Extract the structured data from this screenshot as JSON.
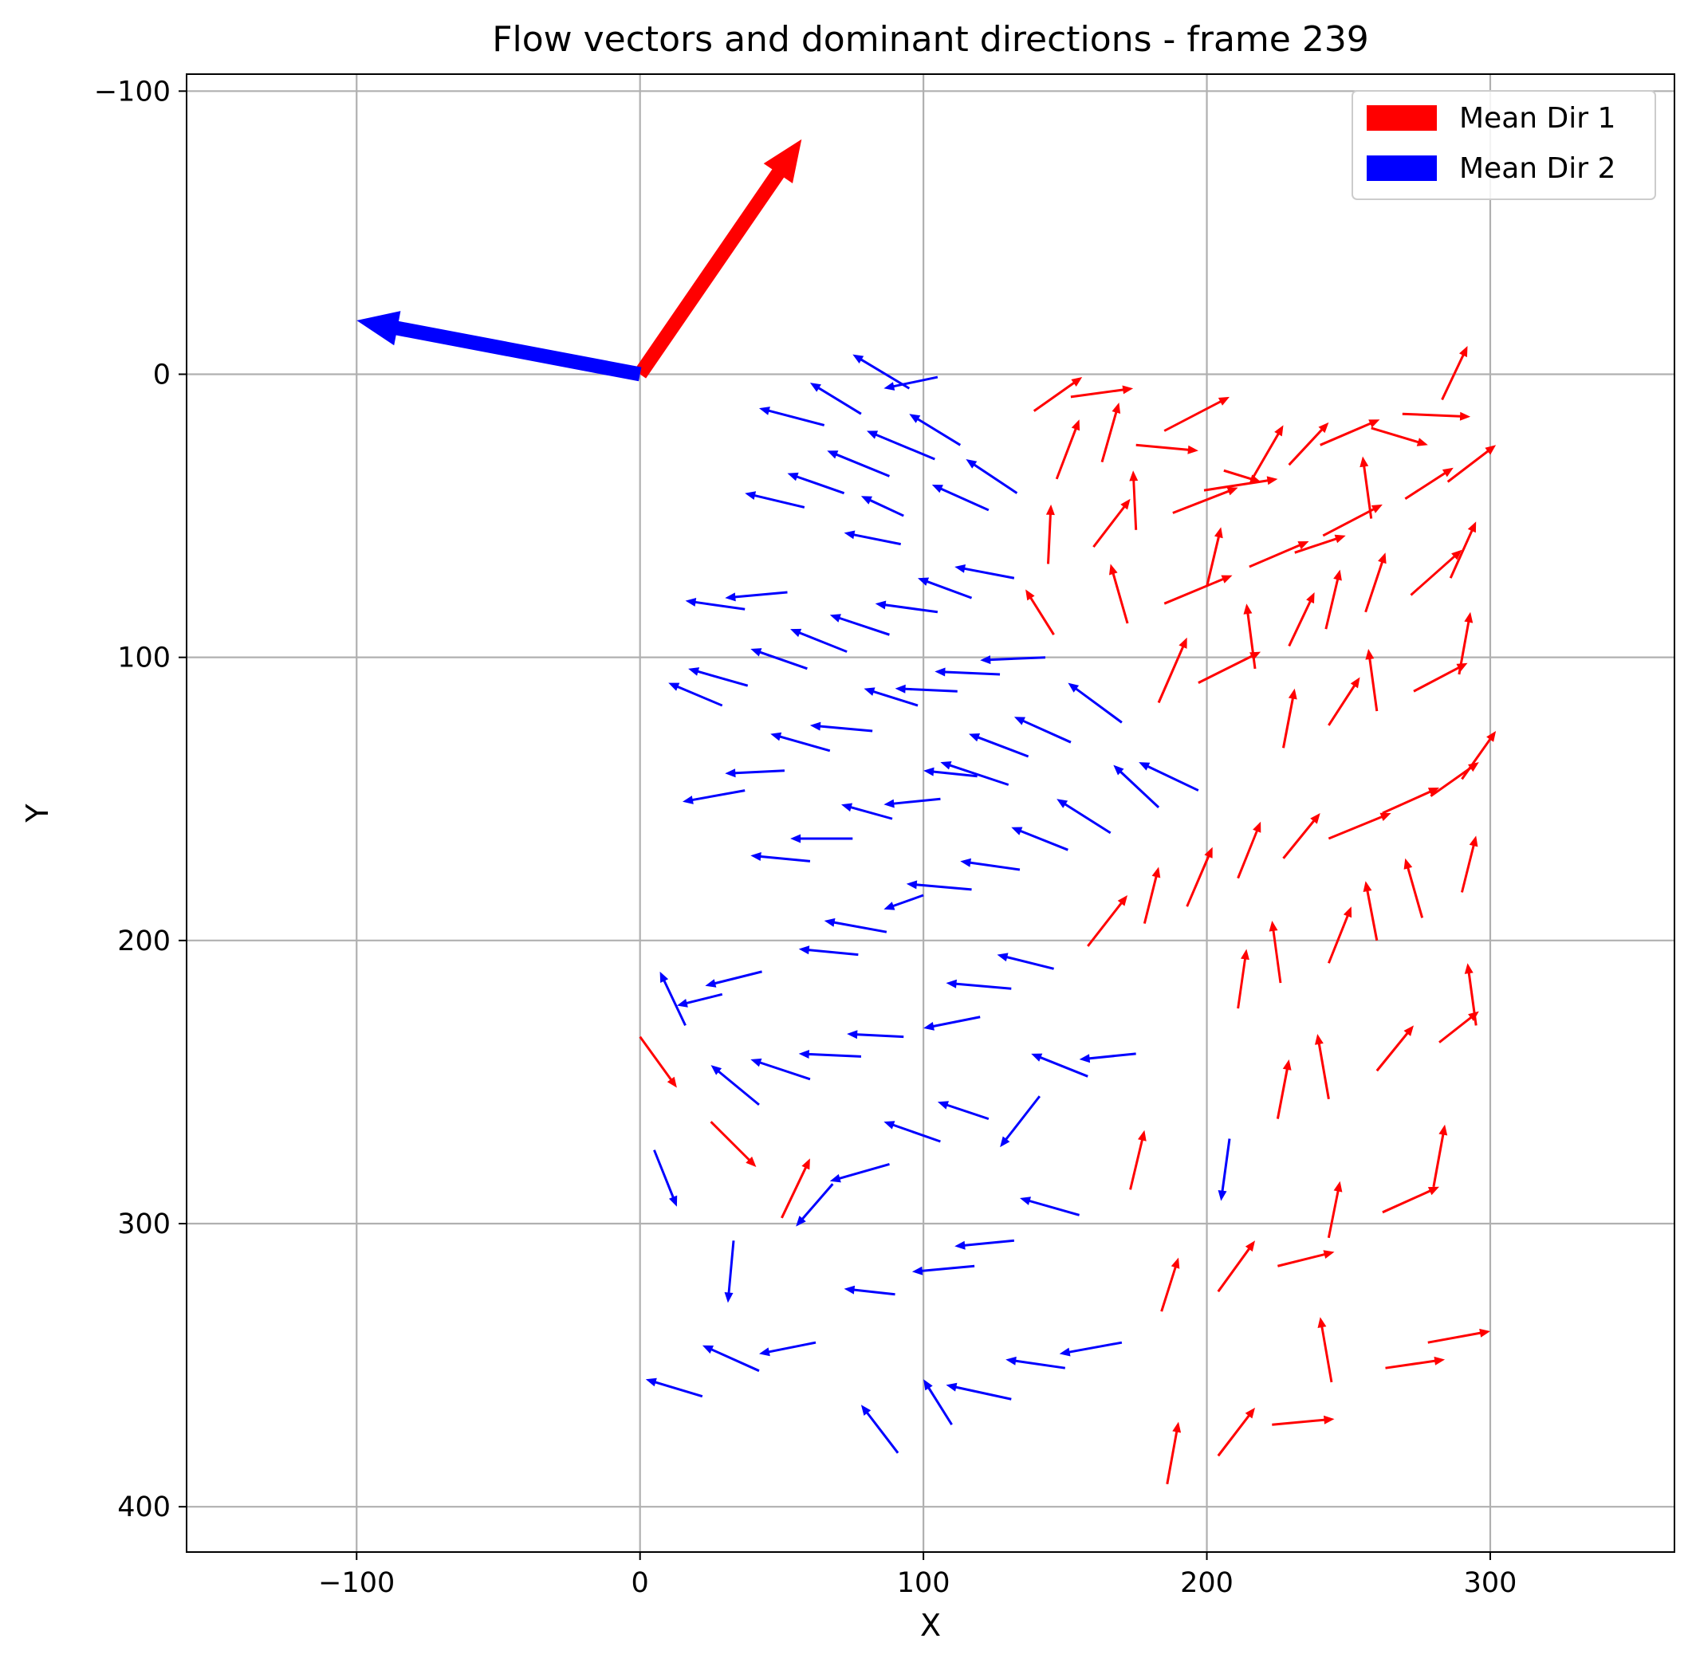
{
  "chart_data": {
    "type": "quiver",
    "title": "Flow vectors and dominant directions - frame 239",
    "xlabel": "X",
    "ylabel": "Y",
    "xlim": [
      -160,
      365
    ],
    "ylim": [
      416,
      -106
    ],
    "y_inverted": true,
    "grid": true,
    "xticks": [
      -100,
      0,
      100,
      200,
      300
    ],
    "yticks": [
      -100,
      0,
      100,
      200,
      300,
      400
    ],
    "xtick_labels": [
      "−100",
      "0",
      "100",
      "200",
      "300"
    ],
    "ytick_labels": [
      "−100",
      "0",
      "100",
      "200",
      "300",
      "400"
    ],
    "legend": {
      "placement": "top-right",
      "entries": [
        {
          "label": "Mean Dir 1",
          "color": "#ff0000"
        },
        {
          "label": "Mean Dir 2",
          "color": "#0000ff"
        }
      ]
    },
    "dominant_directions": [
      {
        "name": "Mean Dir 1",
        "color": "#ff0000",
        "x0": 0,
        "y0": 0,
        "x1": 57,
        "y1": -83
      },
      {
        "name": "Mean Dir 2",
        "color": "#0000ff",
        "x0": 0,
        "y0": 0,
        "x1": -100,
        "y1": -19
      }
    ],
    "vector_series": [
      {
        "name": "Mean Dir 1",
        "color": "#ff0000",
        "vectors": [
          [
            139,
            13,
            156,
            1
          ],
          [
            152,
            8,
            174,
            5
          ],
          [
            147,
            37,
            155,
            16
          ],
          [
            163,
            31,
            169,
            10
          ],
          [
            175,
            25,
            197,
            27
          ],
          [
            185,
            20,
            208,
            8
          ],
          [
            206,
            34,
            219,
            38
          ],
          [
            216,
            37,
            227,
            18
          ],
          [
            229,
            32,
            243,
            17
          ],
          [
            240,
            25,
            261,
            16
          ],
          [
            258,
            19,
            278,
            25
          ],
          [
            269,
            14,
            293,
            15
          ],
          [
            283,
            9,
            292,
            -10
          ],
          [
            144,
            67,
            145,
            46
          ],
          [
            160,
            61,
            173,
            44
          ],
          [
            175,
            55,
            174,
            34
          ],
          [
            188,
            49,
            211,
            40
          ],
          [
            199,
            41,
            225,
            37
          ],
          [
            231,
            63,
            249,
            57
          ],
          [
            241,
            57,
            262,
            46
          ],
          [
            258,
            51,
            255,
            29
          ],
          [
            270,
            44,
            287,
            33
          ],
          [
            285,
            38,
            302,
            25
          ],
          [
            146,
            92,
            136,
            76
          ],
          [
            172,
            88,
            166,
            67
          ],
          [
            185,
            81,
            209,
            71
          ],
          [
            200,
            75,
            205,
            54
          ],
          [
            215,
            68,
            236,
            59
          ],
          [
            229,
            96,
            238,
            77
          ],
          [
            242,
            90,
            247,
            69
          ],
          [
            256,
            84,
            263,
            63
          ],
          [
            272,
            78,
            290,
            62
          ],
          [
            286,
            72,
            295,
            52
          ],
          [
            183,
            116,
            193,
            93
          ],
          [
            197,
            109,
            219,
            98
          ],
          [
            217,
            104,
            214,
            81
          ],
          [
            227,
            132,
            231,
            111
          ],
          [
            243,
            124,
            254,
            107
          ],
          [
            260,
            119,
            257,
            97
          ],
          [
            273,
            112,
            292,
            102
          ],
          [
            289,
            106,
            293,
            84
          ],
          [
            158,
            202,
            172,
            184
          ],
          [
            178,
            194,
            183,
            174
          ],
          [
            193,
            188,
            202,
            167
          ],
          [
            211,
            178,
            219,
            158
          ],
          [
            227,
            171,
            240,
            155
          ],
          [
            243,
            164,
            265,
            155
          ],
          [
            262,
            155,
            282,
            146
          ],
          [
            279,
            149,
            296,
            137
          ],
          [
            290,
            143,
            302,
            126
          ],
          [
            211,
            224,
            214,
            203
          ],
          [
            226,
            215,
            223,
            193
          ],
          [
            243,
            208,
            251,
            188
          ],
          [
            260,
            200,
            256,
            179
          ],
          [
            276,
            192,
            270,
            171
          ],
          [
            290,
            183,
            295,
            163
          ],
          [
            282,
            236,
            296,
            225
          ],
          [
            295,
            230,
            292,
            208
          ],
          [
            0,
            234,
            13,
            252
          ],
          [
            25,
            264,
            41,
            280
          ],
          [
            50,
            298,
            60,
            277
          ],
          [
            173,
            288,
            178,
            267
          ],
          [
            225,
            263,
            229,
            242
          ],
          [
            243,
            256,
            239,
            233
          ],
          [
            260,
            246,
            273,
            230
          ],
          [
            262,
            296,
            282,
            287
          ],
          [
            280,
            287,
            284,
            265
          ],
          [
            184,
            331,
            190,
            312
          ],
          [
            204,
            324,
            217,
            306
          ],
          [
            225,
            315,
            245,
            310
          ],
          [
            243,
            305,
            247,
            285
          ],
          [
            186,
            392,
            190,
            370
          ],
          [
            204,
            382,
            217,
            365
          ],
          [
            223,
            371,
            245,
            369
          ],
          [
            244,
            356,
            240,
            333
          ],
          [
            263,
            351,
            284,
            348
          ],
          [
            278,
            342,
            300,
            338
          ]
        ]
      },
      {
        "name": "Mean Dir 2",
        "color": "#0000ff",
        "vectors": [
          [
            78,
            14,
            60,
            3
          ],
          [
            95,
            5,
            75,
            -7
          ],
          [
            105,
            1,
            86,
            5
          ],
          [
            65,
            18,
            42,
            12
          ],
          [
            88,
            36,
            66,
            27
          ],
          [
            104,
            30,
            80,
            20
          ],
          [
            113,
            25,
            95,
            14
          ],
          [
            133,
            42,
            115,
            30
          ],
          [
            58,
            47,
            37,
            42
          ],
          [
            72,
            42,
            52,
            35
          ],
          [
            93,
            50,
            78,
            43
          ],
          [
            123,
            48,
            103,
            39
          ],
          [
            92,
            60,
            72,
            56
          ],
          [
            132,
            72,
            111,
            68
          ],
          [
            117,
            79,
            98,
            72
          ],
          [
            52,
            77,
            30,
            79
          ],
          [
            37,
            83,
            16,
            80
          ],
          [
            105,
            84,
            83,
            81
          ],
          [
            88,
            92,
            67,
            85
          ],
          [
            73,
            98,
            53,
            90
          ],
          [
            59,
            104,
            39,
            97
          ],
          [
            143,
            100,
            120,
            101
          ],
          [
            127,
            106,
            104,
            105
          ],
          [
            112,
            112,
            90,
            111
          ],
          [
            38,
            110,
            17,
            104
          ],
          [
            29,
            117,
            10,
            109
          ],
          [
            98,
            117,
            79,
            111
          ],
          [
            82,
            126,
            60,
            124
          ],
          [
            137,
            135,
            116,
            127
          ],
          [
            67,
            133,
            46,
            127
          ],
          [
            130,
            145,
            106,
            137
          ],
          [
            152,
            130,
            132,
            121
          ],
          [
            170,
            123,
            151,
            109
          ],
          [
            197,
            147,
            176,
            137
          ],
          [
            183,
            153,
            167,
            138
          ],
          [
            119,
            142,
            100,
            140
          ],
          [
            51,
            140,
            30,
            141
          ],
          [
            37,
            147,
            15,
            151
          ],
          [
            106,
            150,
            86,
            152
          ],
          [
            89,
            157,
            71,
            152
          ],
          [
            166,
            162,
            147,
            150
          ],
          [
            151,
            168,
            131,
            160
          ],
          [
            75,
            164,
            53,
            164
          ],
          [
            60,
            172,
            39,
            170
          ],
          [
            134,
            175,
            113,
            172
          ],
          [
            117,
            182,
            94,
            180
          ],
          [
            100,
            184,
            86,
            189
          ],
          [
            87,
            197,
            65,
            193
          ],
          [
            77,
            205,
            56,
            203
          ],
          [
            43,
            211,
            23,
            216
          ],
          [
            29,
            219,
            13,
            223
          ],
          [
            16,
            230,
            7,
            211
          ],
          [
            146,
            210,
            126,
            205
          ],
          [
            131,
            217,
            108,
            215
          ],
          [
            120,
            227,
            100,
            231
          ],
          [
            93,
            234,
            73,
            233
          ],
          [
            78,
            241,
            56,
            240
          ],
          [
            175,
            240,
            155,
            242
          ],
          [
            158,
            248,
            138,
            240
          ],
          [
            60,
            249,
            39,
            242
          ],
          [
            42,
            258,
            25,
            244
          ],
          [
            123,
            263,
            105,
            257
          ],
          [
            141,
            255,
            127,
            273
          ],
          [
            106,
            271,
            86,
            264
          ],
          [
            88,
            279,
            67,
            285
          ],
          [
            68,
            286,
            55,
            301
          ],
          [
            5,
            274,
            13,
            294
          ],
          [
            155,
            297,
            134,
            291
          ],
          [
            132,
            306,
            111,
            308
          ],
          [
            118,
            315,
            96,
            317
          ],
          [
            90,
            325,
            72,
            323
          ],
          [
            208,
            270,
            205,
            292
          ],
          [
            33,
            306,
            31,
            328
          ],
          [
            170,
            342,
            148,
            346
          ],
          [
            150,
            351,
            129,
            348
          ],
          [
            62,
            342,
            42,
            346
          ],
          [
            42,
            352,
            22,
            343
          ],
          [
            22,
            361,
            2,
            355
          ],
          [
            131,
            362,
            108,
            357
          ],
          [
            110,
            371,
            100,
            355
          ],
          [
            91,
            381,
            78,
            364
          ]
        ]
      }
    ]
  }
}
